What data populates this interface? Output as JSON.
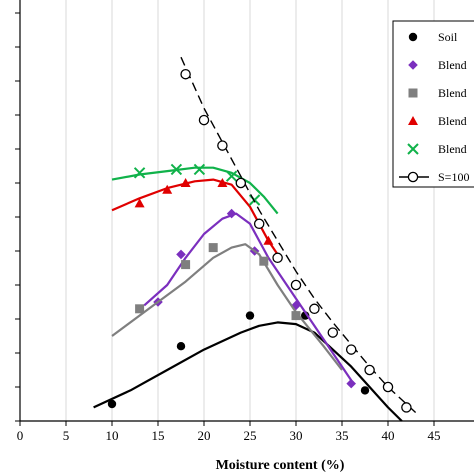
{
  "chart_data": {
    "type": "scatter",
    "xlabel": "Moisture content (%)",
    "ylabel": "",
    "xlim": [
      0,
      47
    ],
    "ylim": [
      0,
      100
    ],
    "x_ticks": [
      0,
      5,
      10,
      15,
      20,
      25,
      30,
      35,
      40,
      45
    ],
    "grid": "vertical",
    "legend_position": "top-right",
    "series": [
      {
        "name": "Soil",
        "color": "#000000",
        "marker": "circle",
        "points": [
          [
            10,
            5
          ],
          [
            17.5,
            22
          ],
          [
            25,
            31
          ],
          [
            31,
            31
          ],
          [
            37.5,
            9
          ]
        ],
        "fit": [
          [
            8,
            4
          ],
          [
            12,
            9
          ],
          [
            16,
            15
          ],
          [
            20,
            21
          ],
          [
            24,
            26
          ],
          [
            26,
            28
          ],
          [
            28,
            29
          ],
          [
            30,
            28.5
          ],
          [
            32,
            26
          ],
          [
            34,
            21
          ],
          [
            36,
            16
          ],
          [
            38,
            10
          ],
          [
            40,
            4
          ],
          [
            41.5,
            0
          ]
        ]
      },
      {
        "name": "Blend",
        "color": "#7B2FBE",
        "marker": "diamond",
        "points": [
          [
            15,
            35
          ],
          [
            17.5,
            49
          ],
          [
            23,
            61
          ],
          [
            25.5,
            50
          ],
          [
            30,
            34
          ],
          [
            36,
            11
          ]
        ],
        "fit": [
          [
            13.5,
            34
          ],
          [
            16,
            40
          ],
          [
            18,
            48
          ],
          [
            20,
            55
          ],
          [
            22,
            59.5
          ],
          [
            23.5,
            61
          ],
          [
            25,
            58
          ],
          [
            27,
            48
          ],
          [
            30,
            36
          ],
          [
            33,
            24
          ],
          [
            36,
            12
          ]
        ]
      },
      {
        "name": "Blend",
        "color": "#7F7F7F",
        "marker": "square",
        "points": [
          [
            13,
            33
          ],
          [
            18,
            46
          ],
          [
            21,
            51
          ],
          [
            26.5,
            47
          ],
          [
            30,
            31
          ]
        ],
        "fit": [
          [
            10,
            25
          ],
          [
            14,
            33
          ],
          [
            18,
            41
          ],
          [
            21,
            48
          ],
          [
            23,
            51
          ],
          [
            24.5,
            52
          ],
          [
            26,
            49
          ],
          [
            28,
            40
          ],
          [
            30,
            32
          ],
          [
            33,
            22
          ],
          [
            35,
            15
          ]
        ]
      },
      {
        "name": "Blend",
        "color": "#E00000",
        "marker": "triangle",
        "points": [
          [
            13,
            64
          ],
          [
            16,
            68
          ],
          [
            18,
            70
          ],
          [
            22,
            70
          ],
          [
            27,
            53
          ]
        ],
        "fit": [
          [
            10,
            62
          ],
          [
            13,
            65.5
          ],
          [
            16,
            68.5
          ],
          [
            19,
            70.5
          ],
          [
            21,
            71
          ],
          [
            23,
            69.5
          ],
          [
            25,
            63
          ],
          [
            27,
            53
          ],
          [
            28,
            49
          ]
        ]
      },
      {
        "name": "Blend",
        "color": "#10B24A",
        "marker": "cross",
        "points": [
          [
            13,
            73
          ],
          [
            17,
            74
          ],
          [
            19.5,
            74
          ],
          [
            23,
            72
          ],
          [
            25.5,
            65
          ]
        ],
        "fit": [
          [
            10,
            71
          ],
          [
            13,
            72.5
          ],
          [
            16,
            73.5
          ],
          [
            19,
            74.5
          ],
          [
            21,
            74.5
          ],
          [
            23,
            73
          ],
          [
            25,
            70
          ],
          [
            26.5,
            66
          ],
          [
            28,
            61
          ]
        ]
      },
      {
        "name": "S=100",
        "color": "#000000",
        "marker": "open-circle",
        "dashed": true,
        "points": [
          [
            18,
            102
          ],
          [
            20,
            88.5
          ],
          [
            22,
            81
          ],
          [
            24,
            70
          ],
          [
            26,
            58
          ],
          [
            28,
            48
          ],
          [
            30,
            40
          ],
          [
            32,
            33
          ],
          [
            34,
            26
          ],
          [
            36,
            21
          ],
          [
            38,
            15
          ],
          [
            40,
            10
          ],
          [
            42,
            4
          ]
        ],
        "fit": [
          [
            17.5,
            107
          ],
          [
            20,
            92
          ],
          [
            22,
            82
          ],
          [
            24,
            72
          ],
          [
            26,
            62
          ],
          [
            28,
            53
          ],
          [
            30,
            44
          ],
          [
            32,
            36
          ],
          [
            34,
            29
          ],
          [
            36,
            22.5
          ],
          [
            38,
            16
          ],
          [
            40,
            10
          ],
          [
            42,
            5
          ],
          [
            43,
            2.5
          ]
        ]
      }
    ]
  }
}
